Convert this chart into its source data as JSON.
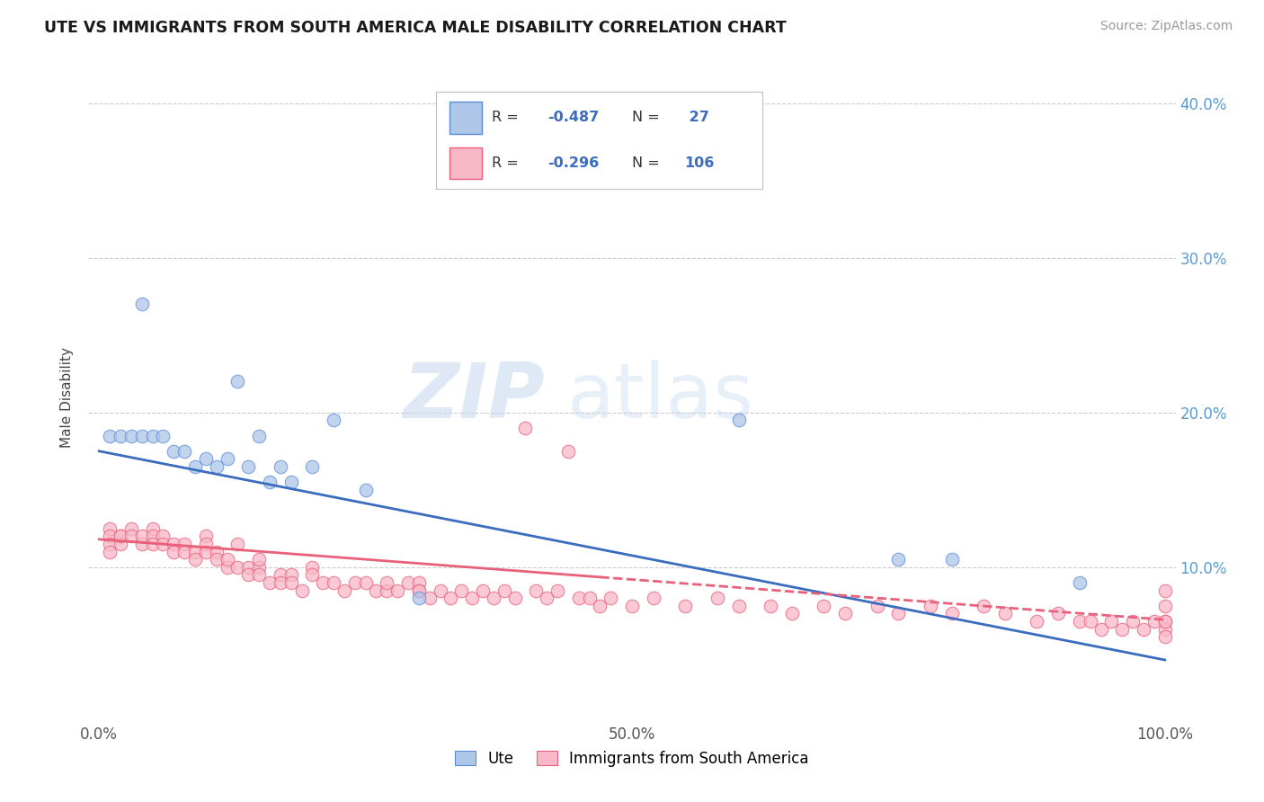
{
  "title": "UTE VS IMMIGRANTS FROM SOUTH AMERICA MALE DISABILITY CORRELATION CHART",
  "source": "Source: ZipAtlas.com",
  "ylabel": "Male Disability",
  "r_ute": -0.487,
  "n_ute": 27,
  "r_imm": -0.296,
  "n_imm": 106,
  "color_ute": "#aec6e8",
  "color_ute_line": "#3a6cbf",
  "color_ute_edge": "#5b8dd9",
  "color_imm": "#f9b8c8",
  "color_imm_line": "#e8607a",
  "color_imm_edge": "#e8607a",
  "xlim": [
    0.0,
    1.0
  ],
  "ylim": [
    0.0,
    0.4
  ],
  "xtick_vals": [
    0.0,
    0.25,
    0.5,
    0.75,
    1.0
  ],
  "xtick_labels": [
    "0.0%",
    "",
    "50.0%",
    "",
    "100.0%"
  ],
  "ytick_vals": [
    0.0,
    0.1,
    0.2,
    0.3,
    0.4
  ],
  "ytick_labels_left": [
    "",
    "",
    "",
    "",
    ""
  ],
  "ytick_labels_right": [
    "",
    "10.0%",
    "20.0%",
    "30.0%",
    "40.0%"
  ],
  "right_tick_color": "#5b9bd5",
  "background_color": "#ffffff",
  "grid_color": "#cccccc",
  "watermark_zip": "ZIP",
  "watermark_atlas": "atlas",
  "ute_x": [
    0.01,
    0.02,
    0.03,
    0.04,
    0.05,
    0.06,
    0.07,
    0.08,
    0.09,
    0.1,
    0.11,
    0.12,
    0.13,
    0.14,
    0.15,
    0.16,
    0.17,
    0.18,
    0.2,
    0.22,
    0.25,
    0.3,
    0.6,
    0.75,
    0.8,
    0.92,
    0.04
  ],
  "ute_y": [
    0.185,
    0.185,
    0.185,
    0.185,
    0.185,
    0.185,
    0.175,
    0.175,
    0.165,
    0.17,
    0.165,
    0.17,
    0.22,
    0.165,
    0.185,
    0.155,
    0.165,
    0.155,
    0.165,
    0.195,
    0.15,
    0.08,
    0.195,
    0.105,
    0.105,
    0.09,
    0.27
  ],
  "imm_x": [
    0.01,
    0.01,
    0.01,
    0.01,
    0.02,
    0.02,
    0.02,
    0.03,
    0.03,
    0.04,
    0.04,
    0.05,
    0.05,
    0.05,
    0.06,
    0.06,
    0.07,
    0.07,
    0.08,
    0.08,
    0.09,
    0.09,
    0.1,
    0.1,
    0.1,
    0.11,
    0.11,
    0.12,
    0.12,
    0.13,
    0.13,
    0.14,
    0.14,
    0.15,
    0.15,
    0.15,
    0.16,
    0.17,
    0.17,
    0.18,
    0.18,
    0.19,
    0.2,
    0.2,
    0.21,
    0.22,
    0.23,
    0.24,
    0.25,
    0.26,
    0.27,
    0.27,
    0.28,
    0.29,
    0.3,
    0.3,
    0.3,
    0.31,
    0.32,
    0.33,
    0.34,
    0.35,
    0.36,
    0.37,
    0.38,
    0.39,
    0.4,
    0.41,
    0.42,
    0.43,
    0.44,
    0.45,
    0.46,
    0.47,
    0.48,
    0.5,
    0.52,
    0.55,
    0.58,
    0.6,
    0.63,
    0.65,
    0.68,
    0.7,
    0.73,
    0.75,
    0.78,
    0.8,
    0.83,
    0.85,
    0.88,
    0.9,
    0.92,
    0.93,
    0.94,
    0.95,
    0.96,
    0.97,
    0.98,
    0.99,
    1.0,
    1.0,
    1.0,
    1.0,
    1.0,
    1.0
  ],
  "imm_y": [
    0.125,
    0.12,
    0.115,
    0.11,
    0.12,
    0.115,
    0.12,
    0.125,
    0.12,
    0.115,
    0.12,
    0.125,
    0.12,
    0.115,
    0.12,
    0.115,
    0.115,
    0.11,
    0.115,
    0.11,
    0.11,
    0.105,
    0.12,
    0.115,
    0.11,
    0.11,
    0.105,
    0.1,
    0.105,
    0.115,
    0.1,
    0.1,
    0.095,
    0.1,
    0.095,
    0.105,
    0.09,
    0.095,
    0.09,
    0.095,
    0.09,
    0.085,
    0.1,
    0.095,
    0.09,
    0.09,
    0.085,
    0.09,
    0.09,
    0.085,
    0.085,
    0.09,
    0.085,
    0.09,
    0.09,
    0.085,
    0.085,
    0.08,
    0.085,
    0.08,
    0.085,
    0.08,
    0.085,
    0.08,
    0.085,
    0.08,
    0.19,
    0.085,
    0.08,
    0.085,
    0.175,
    0.08,
    0.08,
    0.075,
    0.08,
    0.075,
    0.08,
    0.075,
    0.08,
    0.075,
    0.075,
    0.07,
    0.075,
    0.07,
    0.075,
    0.07,
    0.075,
    0.07,
    0.075,
    0.07,
    0.065,
    0.07,
    0.065,
    0.065,
    0.06,
    0.065,
    0.06,
    0.065,
    0.06,
    0.065,
    0.085,
    0.075,
    0.065,
    0.06,
    0.055,
    0.065
  ]
}
